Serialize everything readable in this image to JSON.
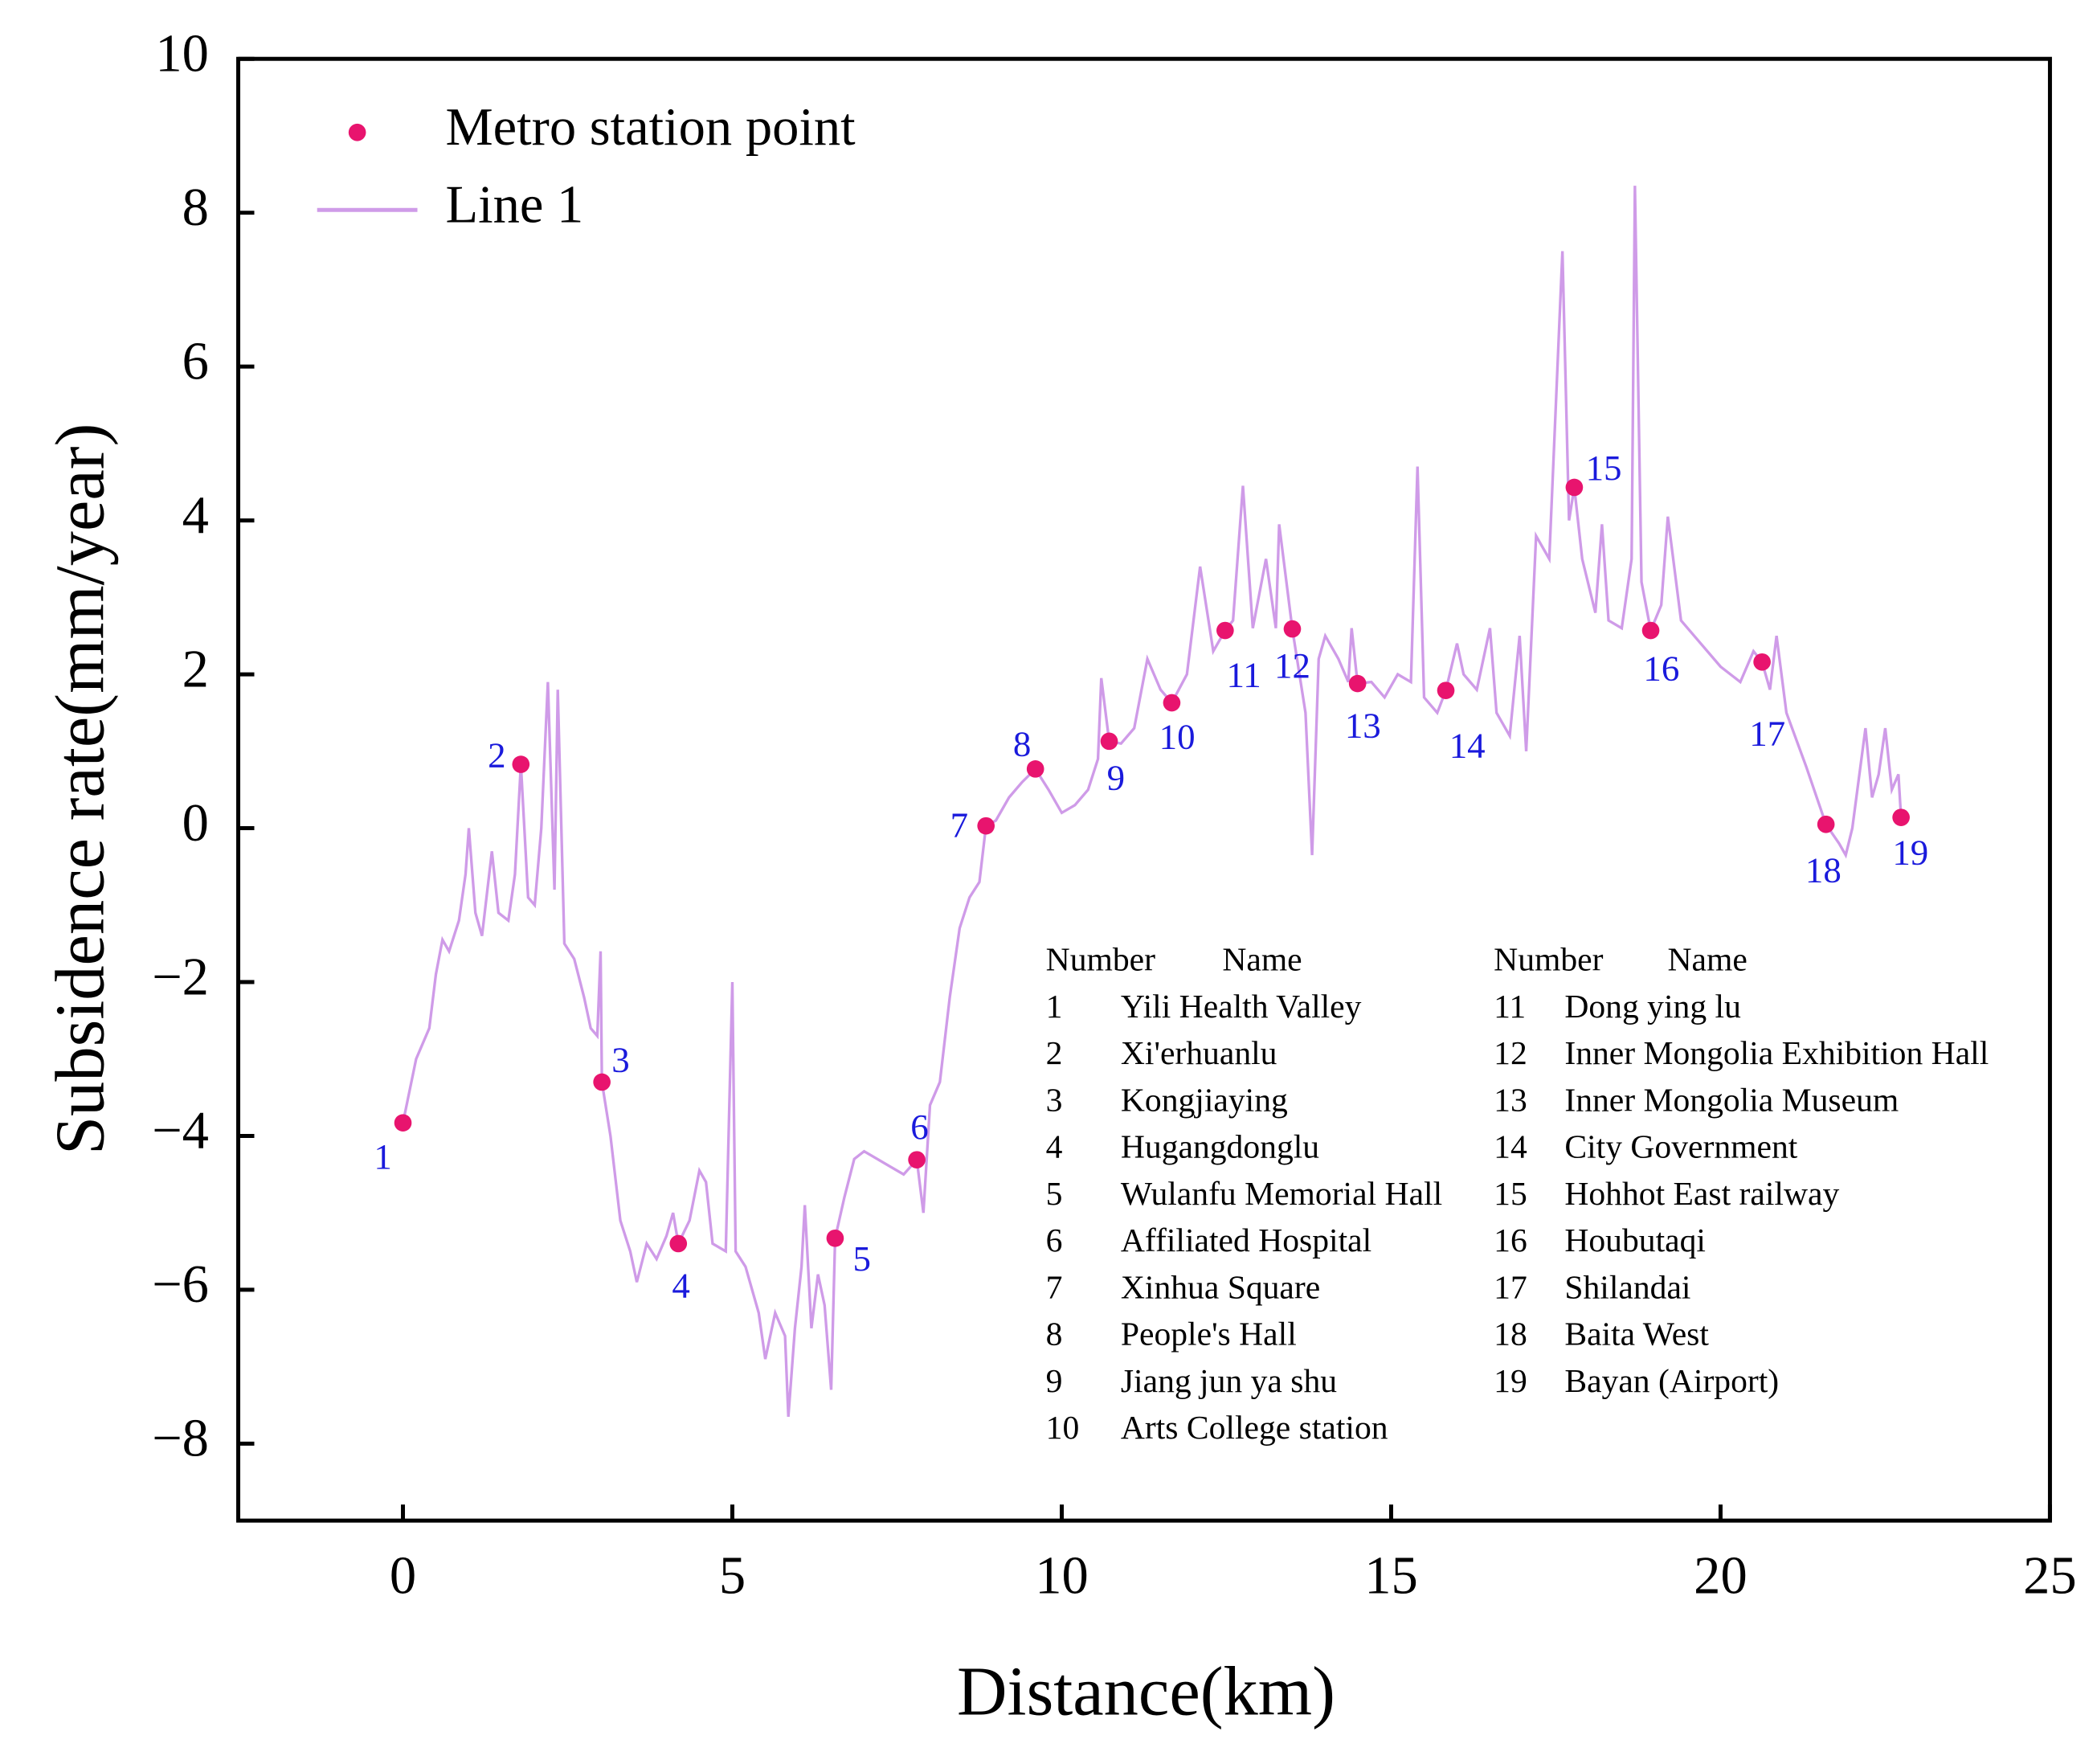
{
  "chart_data": {
    "type": "line",
    "xlabel": "Distance(km)",
    "ylabel": "Subsidence rate(mm/year)",
    "xlim": [
      -2.5,
      25
    ],
    "ylim": [
      -9,
      10
    ],
    "xticks": [
      0,
      5,
      10,
      15,
      20,
      25
    ],
    "yticks": [
      {
        "value": -8,
        "label": "−8"
      },
      {
        "value": -6,
        "label": "−6"
      },
      {
        "value": -4,
        "label": "−4"
      },
      {
        "value": -2,
        "label": "−2"
      },
      0,
      2,
      4,
      6,
      8,
      10
    ],
    "legend": "upper left",
    "series": [
      {
        "name": "Metro station point",
        "type": "scatter",
        "color": "#e8146e",
        "x": [
          0,
          1.79,
          3.02,
          4.18,
          6.56,
          7.8,
          8.85,
          9.6,
          10.72,
          11.67,
          12.48,
          13.5,
          14.49,
          15.83,
          17.78,
          18.94,
          20.63,
          21.6,
          22.74
        ],
        "values": [
          -3.83,
          0.83,
          -3.3,
          -5.4,
          -5.33,
          -4.31,
          0.03,
          0.77,
          1.13,
          1.63,
          2.57,
          2.59,
          1.88,
          1.79,
          4.43,
          2.57,
          2.16,
          0.05,
          0.14
        ],
        "labels": [
          1,
          2,
          3,
          4,
          5,
          6,
          7,
          8,
          9,
          10,
          11,
          12,
          13,
          14,
          15,
          16,
          17,
          18,
          19
        ]
      },
      {
        "name": "Line 1",
        "type": "line",
        "color": "#cf9be8",
        "x": [
          0,
          0.2,
          0.4,
          0.5,
          0.6,
          0.7,
          0.85,
          0.95,
          1.0,
          1.1,
          1.2,
          1.35,
          1.45,
          1.6,
          1.7,
          1.79,
          1.9,
          2.0,
          2.1,
          2.2,
          2.3,
          2.35,
          2.45,
          2.6,
          2.75,
          2.85,
          2.95,
          3.0,
          3.02,
          3.15,
          3.3,
          3.45,
          3.55,
          3.7,
          3.85,
          4.0,
          4.1,
          4.18,
          4.35,
          4.5,
          4.6,
          4.7,
          4.9,
          5.0,
          5.05,
          5.2,
          5.4,
          5.5,
          5.65,
          5.8,
          5.85,
          5.95,
          6.05,
          6.1,
          6.2,
          6.3,
          6.4,
          6.5,
          6.56,
          6.7,
          6.85,
          7.0,
          7.2,
          7.4,
          7.6,
          7.8,
          7.9,
          8.0,
          8.15,
          8.3,
          8.45,
          8.6,
          8.75,
          8.85,
          9.0,
          9.2,
          9.4,
          9.6,
          9.8,
          10.0,
          10.2,
          10.4,
          10.55,
          10.6,
          10.72,
          10.9,
          11.1,
          11.3,
          11.5,
          11.67,
          11.9,
          12.1,
          12.3,
          12.48,
          12.6,
          12.75,
          12.9,
          13.1,
          13.25,
          13.3,
          13.5,
          13.7,
          13.8,
          13.9,
          14.0,
          14.2,
          14.35,
          14.4,
          14.49,
          14.7,
          14.9,
          15.1,
          15.3,
          15.4,
          15.5,
          15.7,
          15.83,
          16.0,
          16.1,
          16.3,
          16.5,
          16.6,
          16.8,
          16.95,
          17.05,
          17.2,
          17.4,
          17.5,
          17.6,
          17.7,
          17.78,
          17.9,
          18.1,
          18.2,
          18.3,
          18.5,
          18.65,
          18.7,
          18.8,
          18.94,
          19.1,
          19.2,
          19.4,
          19.7,
          20.0,
          20.3,
          20.5,
          20.63,
          20.75,
          20.85,
          21.0,
          21.3,
          21.6,
          21.8,
          21.9,
          22.0,
          22.2,
          22.3,
          22.4,
          22.5,
          22.6,
          22.7,
          22.74
        ],
        "values": [
          -3.83,
          -3,
          -2.6,
          -1.9,
          -1.45,
          -1.6,
          -1.2,
          -0.6,
          0,
          -1.1,
          -1.4,
          -0.3,
          -1.1,
          -1.2,
          -0.6,
          0.83,
          -0.9,
          -1.0,
          0,
          1.9,
          -0.8,
          1.8,
          -1.5,
          -1.7,
          -2.2,
          -2.6,
          -2.7,
          -1.6,
          -3.3,
          -4.0,
          -5.1,
          -5.5,
          -5.9,
          -5.4,
          -5.6,
          -5.3,
          -5.0,
          -5.4,
          -5.1,
          -4.45,
          -4.6,
          -5.4,
          -5.5,
          -2.0,
          -5.5,
          -5.7,
          -6.3,
          -6.9,
          -6.3,
          -6.6,
          -7.65,
          -6.5,
          -5.7,
          -4.9,
          -6.5,
          -5.8,
          -6.2,
          -7.3,
          -5.33,
          -4.8,
          -4.3,
          -4.2,
          -4.3,
          -4.4,
          -4.5,
          -4.31,
          -5.0,
          -3.6,
          -3.3,
          -2.2,
          -1.3,
          -0.9,
          -0.7,
          0.03,
          0.1,
          0.4,
          0.6,
          0.77,
          0.5,
          0.2,
          0.3,
          0.5,
          0.9,
          1.95,
          1.13,
          1.1,
          1.3,
          2.2,
          1.8,
          1.63,
          2.0,
          3.4,
          2.3,
          2.57,
          2.7,
          4.45,
          2.6,
          3.5,
          2.6,
          3.95,
          2.59,
          1.5,
          -0.35,
          2.2,
          2.5,
          2.2,
          1.9,
          2.6,
          1.88,
          1.9,
          1.7,
          2.0,
          1.9,
          4.7,
          1.7,
          1.5,
          1.79,
          2.4,
          2.0,
          1.8,
          2.6,
          1.5,
          1.2,
          2.5,
          1.0,
          3.8,
          3.5,
          5.5,
          7.5,
          4.0,
          4.43,
          3.5,
          2.8,
          3.95,
          2.7,
          2.6,
          3.5,
          8.35,
          3.2,
          2.57,
          2.9,
          4.05,
          2.7,
          2.4,
          2.1,
          1.9,
          2.3,
          2.16,
          1.8,
          2.5,
          1.5,
          0.8,
          0.05,
          -0.2,
          -0.35,
          0,
          1.3,
          0.4,
          0.7,
          1.3,
          0.5,
          0.7,
          0.14
        ]
      }
    ]
  },
  "table": {
    "blocks": [
      {
        "header": [
          "Number",
          "Name"
        ],
        "rows": [
          [
            1,
            "Yili Health Valley"
          ],
          [
            2,
            "Xi'erhuanlu"
          ],
          [
            3,
            "Kongjiaying"
          ],
          [
            4,
            "Hugangdonglu"
          ],
          [
            5,
            "Wulanfu Memorial Hall"
          ],
          [
            6,
            "Affiliated Hospital"
          ],
          [
            7,
            "Xinhua Square"
          ],
          [
            8,
            "People's Hall"
          ],
          [
            9,
            "Jiang jun ya shu"
          ],
          [
            10,
            "Arts College station"
          ]
        ]
      },
      {
        "header": [
          "Number",
          "Name"
        ],
        "rows": [
          [
            11,
            "Dong ying lu"
          ],
          [
            12,
            "Inner Mongolia Exhibition Hall"
          ],
          [
            13,
            "Inner Mongolia Museum"
          ],
          [
            14,
            "City Government"
          ],
          [
            15,
            "Hohhot East railway"
          ],
          [
            16,
            "Houbutaqi"
          ],
          [
            17,
            "Shilandai"
          ],
          [
            18,
            "Baita West"
          ],
          [
            19,
            "Bayan (Airport)"
          ]
        ]
      }
    ]
  }
}
